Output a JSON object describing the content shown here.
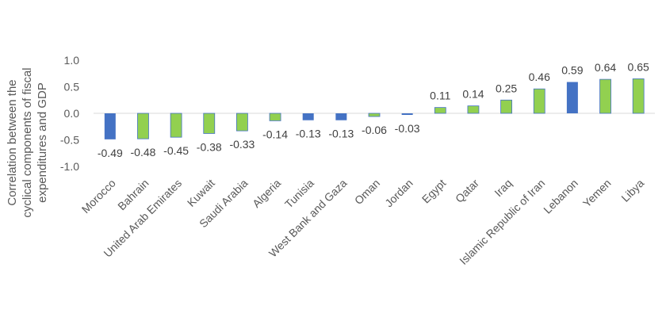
{
  "chart_data": {
    "type": "bar",
    "title": "",
    "xlabel": "",
    "ylabel_lines": [
      "Correlation between the",
      "cyclical components of fiscal",
      "expenditures and GDP"
    ],
    "ylim": [
      -1.0,
      1.0
    ],
    "yticks": [
      "1.0",
      "0.5",
      "0.0",
      "-0.5",
      "-1.0"
    ],
    "ytick_values": [
      1.0,
      0.5,
      0.0,
      -0.5,
      -1.0
    ],
    "grid": false,
    "legend": "none",
    "colors": {
      "blue": "#4472C4",
      "green": "#92D050",
      "green_border": "#4472C4",
      "axis": "#D9D9D9"
    },
    "categories": [
      "Morocco",
      "Bahrain",
      "United Arab Emirates",
      "Kuwait",
      "Saudi Arabia",
      "Algeria",
      "Tunisia",
      "West Bank and Gaza",
      "Oman",
      "Jordan",
      "Egypt",
      "Qatar",
      "Iraq",
      "Islamic Republic of Iran",
      "Lebanon",
      "Yemen",
      "Libya"
    ],
    "values": [
      -0.49,
      -0.48,
      -0.45,
      -0.38,
      -0.33,
      -0.14,
      -0.13,
      -0.13,
      -0.06,
      -0.03,
      0.11,
      0.14,
      0.25,
      0.46,
      0.59,
      0.64,
      0.65
    ],
    "value_labels": [
      "-0.49",
      "-0.48",
      "-0.45",
      "-0.38",
      "-0.33",
      "-0.14",
      "-0.13",
      "-0.13",
      "-0.06",
      "-0.03",
      "0.11",
      "0.14",
      "0.25",
      "0.46",
      "0.59",
      "0.64",
      "0.65"
    ],
    "bar_colors": [
      "blue",
      "green",
      "green",
      "green",
      "green",
      "green",
      "blue",
      "blue",
      "green",
      "blue",
      "green",
      "green",
      "green",
      "green",
      "blue",
      "green",
      "green"
    ]
  }
}
